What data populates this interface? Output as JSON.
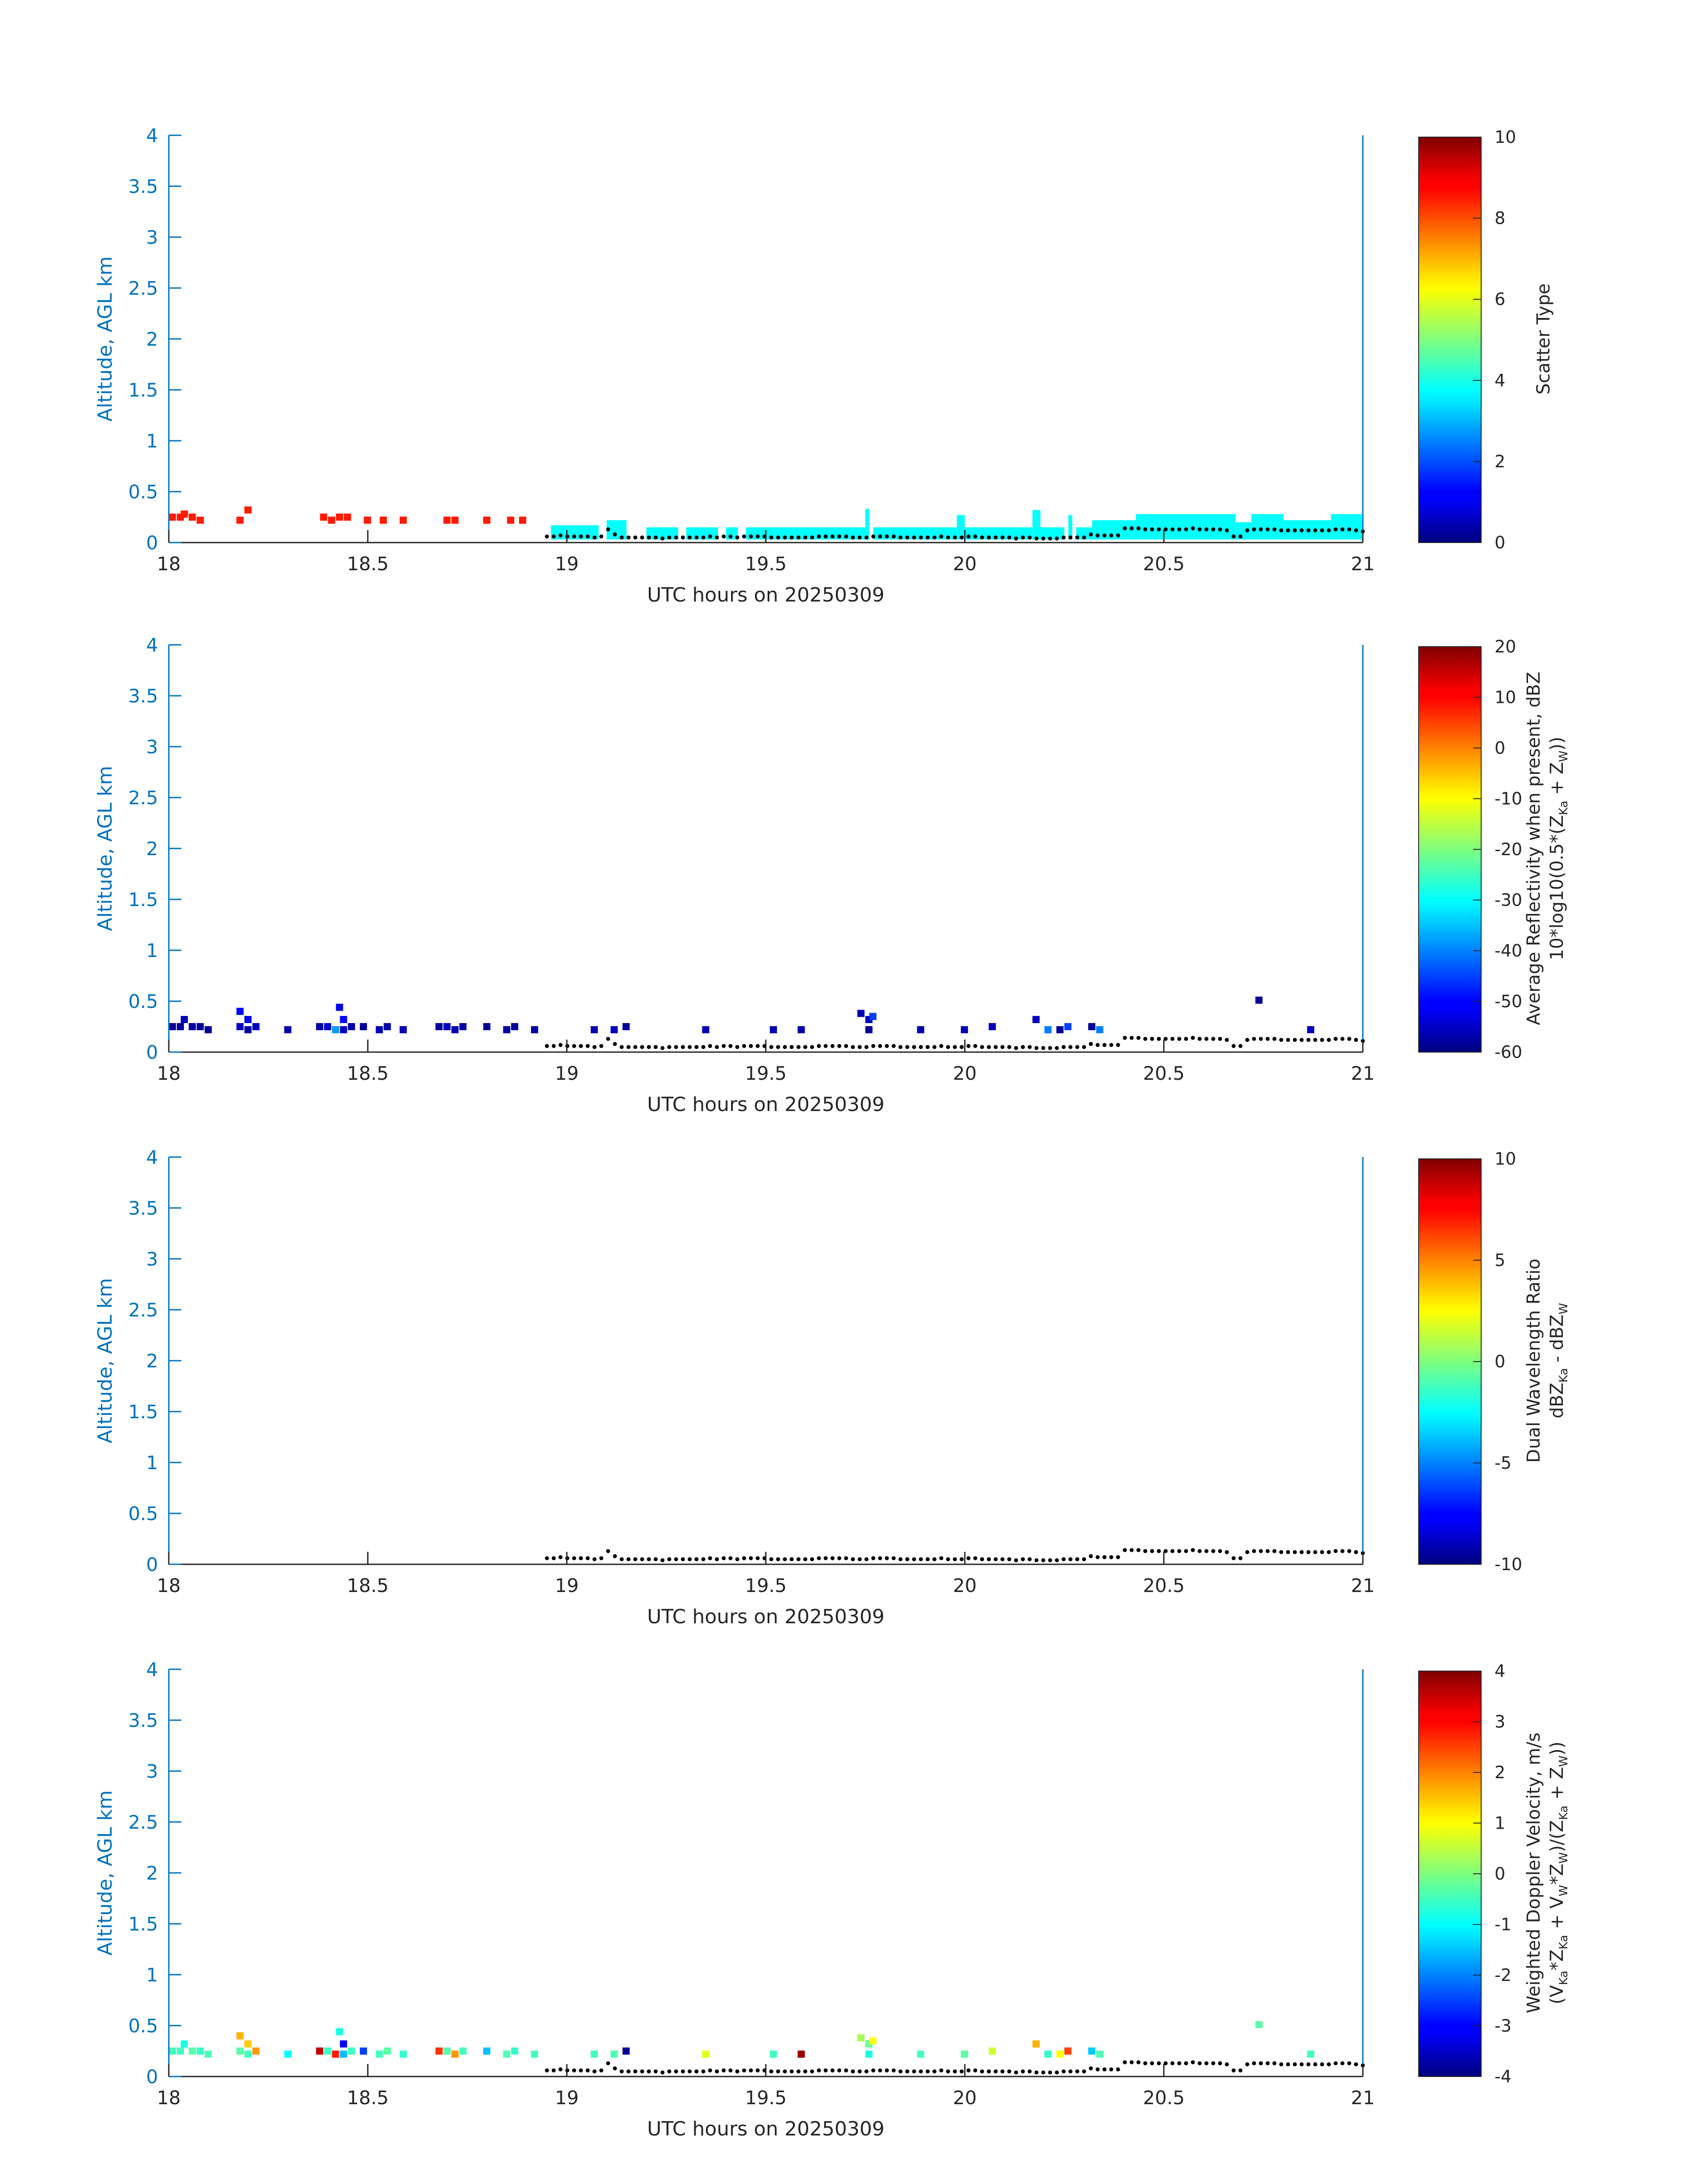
{
  "colors": {
    "axis_blue": "#0072BD",
    "text": "#262626",
    "surface_dots": "#000000"
  },
  "chart_data": [
    {
      "type": "heatmap",
      "panel": 1,
      "xlabel": "UTC hours on 20250309",
      "ylabel": "Altitude, AGL km",
      "xlim": [
        18,
        21
      ],
      "ylim": [
        0,
        4
      ],
      "xticks": [
        "18",
        "18.5",
        "19",
        "19.5",
        "20",
        "20.5",
        "21"
      ],
      "yticks": [
        "0",
        "0.5",
        "1",
        "1.5",
        "2",
        "2.5",
        "3",
        "3.5",
        "4"
      ],
      "colorbar": {
        "label": [
          "Scatter Type"
        ],
        "range": [
          0,
          10
        ],
        "ticks": [
          "0",
          "2",
          "4",
          "6",
          "8",
          "10"
        ]
      },
      "colormap": "jet",
      "cells": [
        [
          18.0,
          0.25,
          8.5
        ],
        [
          18.02,
          0.25,
          8.5
        ],
        [
          18.03,
          0.28,
          8.5
        ],
        [
          18.05,
          0.25,
          8.5
        ],
        [
          18.07,
          0.22,
          8.5
        ],
        [
          18.17,
          0.22,
          8.5
        ],
        [
          18.19,
          0.32,
          8.5
        ],
        [
          18.38,
          0.25,
          8.5
        ],
        [
          18.4,
          0.22,
          8.5
        ],
        [
          18.42,
          0.25,
          8.5
        ],
        [
          18.44,
          0.25,
          8.5
        ],
        [
          18.49,
          0.22,
          8.5
        ],
        [
          18.53,
          0.22,
          8.5
        ],
        [
          18.58,
          0.22,
          8.5
        ],
        [
          18.69,
          0.22,
          8.5
        ],
        [
          18.71,
          0.22,
          8.5
        ],
        [
          18.79,
          0.22,
          8.5
        ],
        [
          18.85,
          0.22,
          8.5
        ],
        [
          18.88,
          0.22,
          8.5
        ]
      ],
      "band": {
        "value": 3.8,
        "segments": [
          [
            18.96,
            19.08,
            0.17
          ],
          [
            19.1,
            19.15,
            0.22
          ],
          [
            19.2,
            19.28,
            0.15
          ],
          [
            19.3,
            19.38,
            0.15
          ],
          [
            19.4,
            19.43,
            0.15
          ],
          [
            19.45,
            19.75,
            0.15
          ],
          [
            19.75,
            19.76,
            0.33
          ],
          [
            19.77,
            19.98,
            0.15
          ],
          [
            19.98,
            20.0,
            0.27
          ],
          [
            20.0,
            20.17,
            0.15
          ],
          [
            20.17,
            20.19,
            0.32
          ],
          [
            20.19,
            20.25,
            0.15
          ],
          [
            20.26,
            20.27,
            0.27
          ],
          [
            20.28,
            20.32,
            0.15
          ],
          [
            20.32,
            20.34,
            0.22
          ],
          [
            20.34,
            20.43,
            0.22
          ],
          [
            20.43,
            20.68,
            0.28
          ],
          [
            20.68,
            20.72,
            0.2
          ],
          [
            20.72,
            20.8,
            0.28
          ],
          [
            20.8,
            20.92,
            0.22
          ],
          [
            20.92,
            21.0,
            0.28
          ]
        ]
      },
      "surface_line": "common"
    },
    {
      "type": "heatmap",
      "panel": 2,
      "xlabel": "UTC hours on 20250309",
      "ylabel": "Altitude, AGL km",
      "xlim": [
        18,
        21
      ],
      "ylim": [
        0,
        4
      ],
      "xticks": [
        "18",
        "18.5",
        "19",
        "19.5",
        "20",
        "20.5",
        "21"
      ],
      "yticks": [
        "0",
        "0.5",
        "1",
        "1.5",
        "2",
        "2.5",
        "3",
        "3.5",
        "4"
      ],
      "colorbar": {
        "label": [
          "Average Reflectivity when present, dBZ",
          "10*log10(0.5*(Z",
          "Ka",
          " + Z",
          "W",
          "))"
        ],
        "range": [
          -60,
          20
        ],
        "ticks": [
          "-60",
          "-50",
          "-40",
          "-30",
          "-20",
          "-10",
          "0",
          "10",
          "20"
        ]
      },
      "colormap": "jet",
      "cells": [
        [
          18.0,
          0.25,
          -58
        ],
        [
          18.02,
          0.25,
          -58
        ],
        [
          18.03,
          0.32,
          -56
        ],
        [
          18.05,
          0.25,
          -57
        ],
        [
          18.07,
          0.25,
          -58
        ],
        [
          18.09,
          0.22,
          -58
        ],
        [
          18.17,
          0.4,
          -50
        ],
        [
          18.17,
          0.25,
          -55
        ],
        [
          18.19,
          0.32,
          -52
        ],
        [
          18.19,
          0.22,
          -57
        ],
        [
          18.21,
          0.25,
          -55
        ],
        [
          18.29,
          0.22,
          -57
        ],
        [
          18.37,
          0.25,
          -57
        ],
        [
          18.39,
          0.25,
          -54
        ],
        [
          18.41,
          0.22,
          -38
        ],
        [
          18.42,
          0.44,
          -52
        ],
        [
          18.43,
          0.32,
          -50
        ],
        [
          18.43,
          0.22,
          -55
        ],
        [
          18.45,
          0.25,
          -57
        ],
        [
          18.48,
          0.25,
          -58
        ],
        [
          18.52,
          0.22,
          -56
        ],
        [
          18.54,
          0.25,
          -57
        ],
        [
          18.58,
          0.22,
          -56
        ],
        [
          18.67,
          0.25,
          -58
        ],
        [
          18.69,
          0.25,
          -55
        ],
        [
          18.71,
          0.22,
          -56
        ],
        [
          18.73,
          0.25,
          -57
        ],
        [
          18.79,
          0.25,
          -58
        ],
        [
          18.84,
          0.22,
          -57
        ],
        [
          18.86,
          0.25,
          -58
        ],
        [
          18.91,
          0.22,
          -57
        ],
        [
          19.06,
          0.22,
          -56
        ],
        [
          19.11,
          0.22,
          -55
        ],
        [
          19.14,
          0.25,
          -58
        ],
        [
          19.34,
          0.22,
          -56
        ],
        [
          19.51,
          0.22,
          -56
        ],
        [
          19.58,
          0.22,
          -57
        ],
        [
          19.73,
          0.38,
          -56
        ],
        [
          19.75,
          0.32,
          -55
        ],
        [
          19.75,
          0.22,
          -58
        ],
        [
          19.76,
          0.35,
          -45
        ],
        [
          19.88,
          0.22,
          -56
        ],
        [
          19.99,
          0.22,
          -56
        ],
        [
          20.06,
          0.25,
          -56
        ],
        [
          20.17,
          0.32,
          -55
        ],
        [
          20.2,
          0.22,
          -40
        ],
        [
          20.23,
          0.22,
          -58
        ],
        [
          20.25,
          0.25,
          -45
        ],
        [
          20.31,
          0.25,
          -58
        ],
        [
          20.33,
          0.22,
          -40
        ],
        [
          20.73,
          0.51,
          -58
        ],
        [
          20.86,
          0.22,
          -55
        ]
      ],
      "surface_line": "common"
    },
    {
      "type": "heatmap",
      "panel": 3,
      "xlabel": "UTC hours on 20250309",
      "ylabel": "Altitude, AGL km",
      "xlim": [
        18,
        21
      ],
      "ylim": [
        0,
        4
      ],
      "xticks": [
        "18",
        "18.5",
        "19",
        "19.5",
        "20",
        "20.5",
        "21"
      ],
      "yticks": [
        "0",
        "0.5",
        "1",
        "1.5",
        "2",
        "2.5",
        "3",
        "3.5",
        "4"
      ],
      "colorbar": {
        "label": [
          "Dual Wavelength Ratio",
          "dBZ",
          "Ka",
          " - dBZ",
          "W"
        ],
        "range": [
          -10,
          10
        ],
        "ticks": [
          "-10",
          "-5",
          "0",
          "5",
          "10"
        ]
      },
      "colormap": "jet",
      "cells": [],
      "surface_line": "common"
    },
    {
      "type": "heatmap",
      "panel": 4,
      "xlabel": "UTC hours on 20250309",
      "ylabel": "Altitude, AGL km",
      "xlim": [
        18,
        21
      ],
      "ylim": [
        0,
        4
      ],
      "xticks": [
        "18",
        "18.5",
        "19",
        "19.5",
        "20",
        "20.5",
        "21"
      ],
      "yticks": [
        "0",
        "0.5",
        "1",
        "1.5",
        "2",
        "2.5",
        "3",
        "3.5",
        "4"
      ],
      "colorbar": {
        "label": [
          "Weighted Doppler Velocity, m/s",
          "(V",
          "Ka",
          "*Z",
          "Ka",
          " + V",
          "W",
          "*Z",
          "W",
          ")/(Z",
          "Ka",
          " + Z",
          "W",
          "))"
        ],
        "range": [
          -4,
          4
        ],
        "ticks": [
          "-4",
          "-3",
          "-2",
          "-1",
          "0",
          "1",
          "2",
          "3",
          "4"
        ]
      },
      "colormap": "jet",
      "cells": [
        [
          18.0,
          0.25,
          -0.5
        ],
        [
          18.02,
          0.25,
          -0.5
        ],
        [
          18.03,
          0.32,
          -0.8
        ],
        [
          18.05,
          0.25,
          -0.3
        ],
        [
          18.07,
          0.25,
          -0.6
        ],
        [
          18.09,
          0.22,
          -0.4
        ],
        [
          18.17,
          0.4,
          1.6
        ],
        [
          18.17,
          0.25,
          -0.3
        ],
        [
          18.19,
          0.32,
          1.4
        ],
        [
          18.19,
          0.22,
          -0.5
        ],
        [
          18.21,
          0.25,
          1.8
        ],
        [
          18.29,
          0.22,
          -1.0
        ],
        [
          18.37,
          0.25,
          3.5
        ],
        [
          18.39,
          0.25,
          -0.5
        ],
        [
          18.41,
          0.22,
          2.8
        ],
        [
          18.42,
          0.44,
          -0.8
        ],
        [
          18.43,
          0.32,
          -3.0
        ],
        [
          18.43,
          0.22,
          -1.5
        ],
        [
          18.45,
          0.25,
          -0.5
        ],
        [
          18.48,
          0.25,
          -2.5
        ],
        [
          18.52,
          0.22,
          -0.5
        ],
        [
          18.54,
          0.25,
          -0.3
        ],
        [
          18.58,
          0.22,
          -0.6
        ],
        [
          18.67,
          0.25,
          2.6
        ],
        [
          18.69,
          0.25,
          -0.3
        ],
        [
          18.71,
          0.22,
          1.8
        ],
        [
          18.73,
          0.25,
          -0.5
        ],
        [
          18.79,
          0.25,
          -1.5
        ],
        [
          18.84,
          0.22,
          -0.4
        ],
        [
          18.86,
          0.25,
          -0.6
        ],
        [
          18.91,
          0.22,
          -0.5
        ],
        [
          19.06,
          0.22,
          -0.5
        ],
        [
          19.11,
          0.22,
          -0.4
        ],
        [
          19.14,
          0.25,
          -3.8
        ],
        [
          19.34,
          0.22,
          0.8
        ],
        [
          19.51,
          0.22,
          -0.5
        ],
        [
          19.58,
          0.22,
          3.8
        ],
        [
          19.73,
          0.38,
          0.3
        ],
        [
          19.75,
          0.32,
          -0.2
        ],
        [
          19.75,
          0.22,
          -0.8
        ],
        [
          19.76,
          0.35,
          1.0
        ],
        [
          19.88,
          0.22,
          -0.5
        ],
        [
          19.99,
          0.22,
          -0.3
        ],
        [
          20.06,
          0.25,
          0.6
        ],
        [
          20.17,
          0.32,
          1.6
        ],
        [
          20.2,
          0.22,
          -0.6
        ],
        [
          20.23,
          0.22,
          1.0
        ],
        [
          20.25,
          0.25,
          2.5
        ],
        [
          20.31,
          0.25,
          -1.4
        ],
        [
          20.33,
          0.22,
          -0.4
        ],
        [
          20.73,
          0.51,
          -0.3
        ],
        [
          20.86,
          0.22,
          -0.5
        ]
      ],
      "surface_line": "common"
    }
  ],
  "surface_line": {
    "series_x_start": 18.95,
    "series_x_end": 21.0,
    "values": [
      0.06,
      0.06,
      0.07,
      0.06,
      0.06,
      0.06,
      0.06,
      0.05,
      0.06,
      0.13,
      0.08,
      0.05,
      0.05,
      0.05,
      0.05,
      0.05,
      0.05,
      0.04,
      0.05,
      0.05,
      0.05,
      0.05,
      0.05,
      0.05,
      0.06,
      0.05,
      0.06,
      0.06,
      0.05,
      0.06,
      0.06,
      0.06,
      0.06,
      0.05,
      0.05,
      0.05,
      0.05,
      0.05,
      0.05,
      0.05,
      0.06,
      0.06,
      0.06,
      0.06,
      0.06,
      0.05,
      0.05,
      0.05,
      0.06,
      0.06,
      0.06,
      0.06,
      0.05,
      0.05,
      0.05,
      0.05,
      0.05,
      0.05,
      0.06,
      0.05,
      0.05,
      0.05,
      0.06,
      0.06,
      0.05,
      0.05,
      0.05,
      0.05,
      0.05,
      0.04,
      0.05,
      0.05,
      0.04,
      0.04,
      0.04,
      0.04,
      0.05,
      0.05,
      0.05,
      0.05,
      0.08,
      0.07,
      0.07,
      0.07,
      0.07,
      0.14,
      0.14,
      0.14,
      0.13,
      0.13,
      0.13,
      0.13,
      0.13,
      0.13,
      0.13,
      0.14,
      0.13,
      0.13,
      0.13,
      0.13,
      0.12,
      0.06,
      0.06,
      0.12,
      0.13,
      0.13,
      0.13,
      0.13,
      0.12,
      0.12,
      0.12,
      0.12,
      0.12,
      0.12,
      0.12,
      0.12,
      0.13,
      0.13,
      0.13,
      0.12,
      0.11
    ]
  }
}
